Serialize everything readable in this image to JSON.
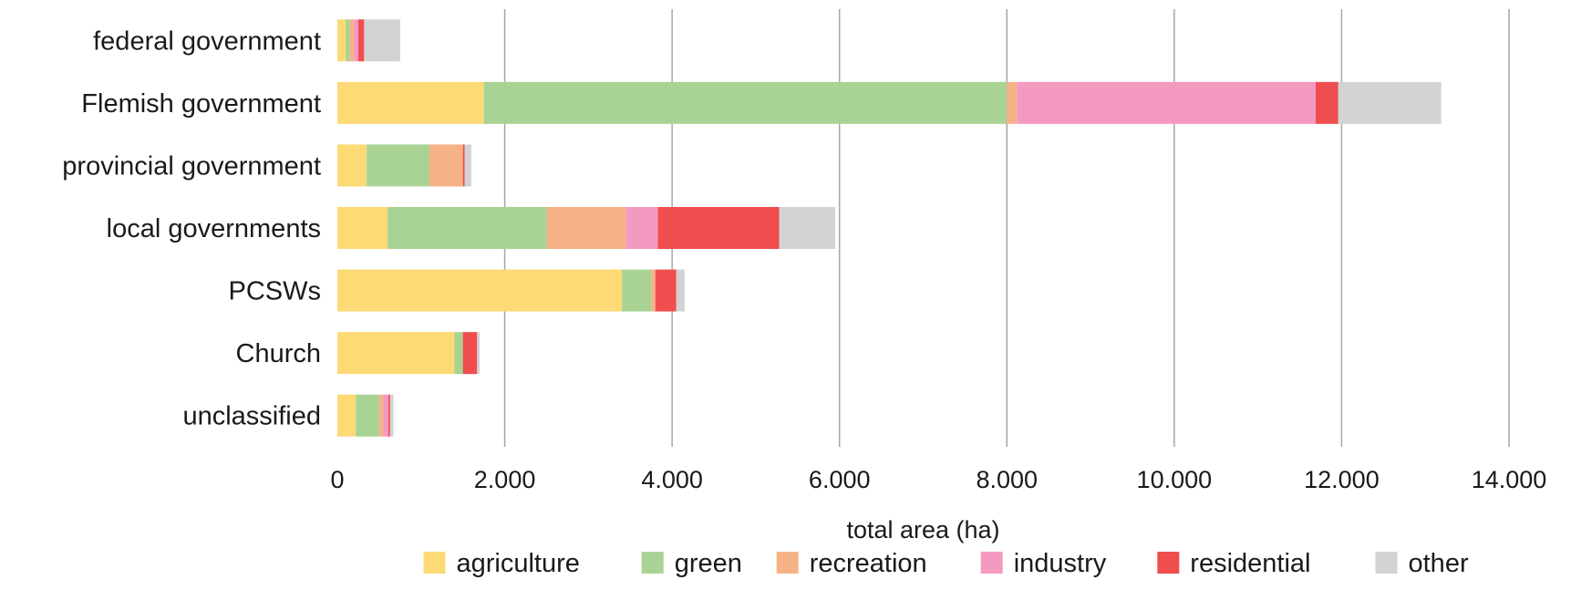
{
  "chart_data": {
    "type": "bar",
    "orientation": "horizontal",
    "stacked": true,
    "title": "",
    "xlabel": "total area (ha)",
    "ylabel": "",
    "xlim": [
      0,
      14000
    ],
    "x_ticks": [
      0,
      2000,
      4000,
      6000,
      8000,
      10000,
      12000,
      14000
    ],
    "x_tick_labels": [
      "0",
      "2.000",
      "4.000",
      "6.000",
      "8.000",
      "10.000",
      "12.000",
      "14.000"
    ],
    "grid": "vertical",
    "legend_position": "bottom",
    "categories": [
      "federal government",
      "Flemish government",
      "provincial government",
      "local governments",
      "PCSWs",
      "Church",
      "unclassified"
    ],
    "series": [
      {
        "name": "agriculture",
        "color": "#FDDA76",
        "values": [
          100,
          1750,
          350,
          600,
          3400,
          1400,
          220
        ]
      },
      {
        "name": "green",
        "color": "#A8D394",
        "values": [
          50,
          6250,
          750,
          1900,
          350,
          100,
          280
        ]
      },
      {
        "name": "recreation",
        "color": "#F5B287",
        "values": [
          50,
          120,
          400,
          950,
          50,
          0,
          50
        ]
      },
      {
        "name": "industry",
        "color": "#F49AC1",
        "values": [
          50,
          3570,
          0,
          380,
          0,
          0,
          60
        ]
      },
      {
        "name": "residential",
        "color": "#EF4E4E",
        "values": [
          70,
          270,
          20,
          1450,
          250,
          170,
          20
        ]
      },
      {
        "name": "other",
        "color": "#D3D3D3",
        "values": [
          430,
          1230,
          80,
          670,
          100,
          30,
          40
        ]
      }
    ]
  }
}
